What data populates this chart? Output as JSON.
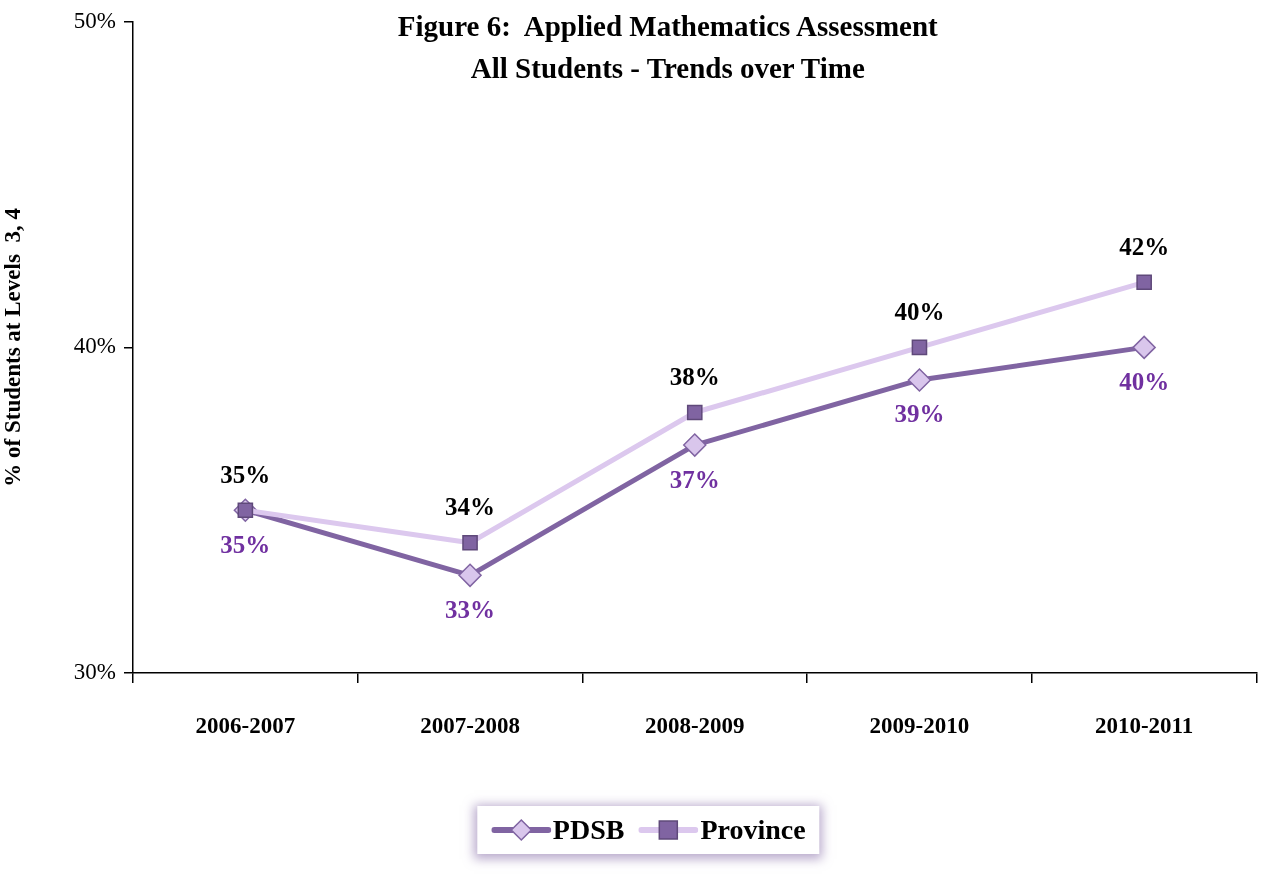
{
  "chart_data": {
    "type": "line",
    "title": "Figure 6:  Applied Mathematics Assessment\nAll Students - Trends over Time",
    "ylabel": "% of Students at Levels  3, 4",
    "categories": [
      "2006-2007",
      "2007-2008",
      "2008-2009",
      "2009-2010",
      "2010-2011"
    ],
    "series": [
      {
        "name": "PDSB",
        "color": "#8064a2",
        "colors": [
          "#d9c6ec",
          "#d9c6ec",
          "#d9c6ec",
          "#d9c6ec",
          "#d9c6ec"
        ],
        "marker": "diamond",
        "values": [
          35,
          33,
          37,
          39,
          40
        ],
        "value_labels": [
          "35%",
          "33%",
          "37%",
          "39%",
          "40%"
        ]
      },
      {
        "name": "Province",
        "color": "#dcc8ee",
        "colors": [
          "#8064a2",
          "#8064a2",
          "#8064a2",
          "#8064a2",
          "#8064a2"
        ],
        "marker": "square",
        "values": [
          35,
          34,
          38,
          40,
          42
        ],
        "value_labels": [
          "35%",
          "34%",
          "38%",
          "40%",
          "42%"
        ]
      }
    ],
    "ylim": [
      30,
      50
    ],
    "yticks": [
      {
        "value": 30,
        "label": "30%"
      },
      {
        "value": 40,
        "label": "40%"
      },
      {
        "value": 50,
        "label": "50%"
      }
    ],
    "grid": false,
    "legend": "bottom",
    "line_style": "solid"
  }
}
